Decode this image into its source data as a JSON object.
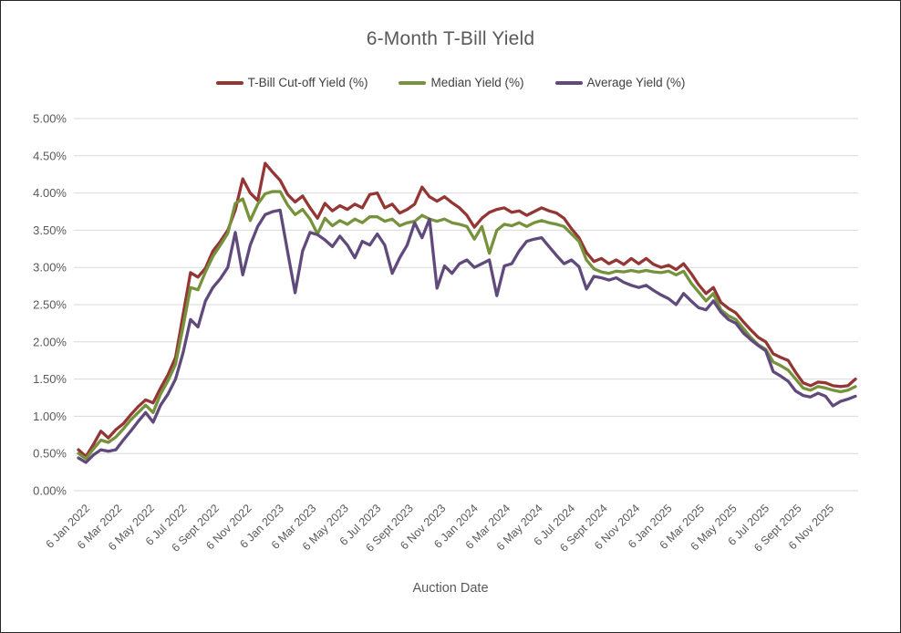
{
  "chart_data": {
    "type": "line",
    "title": "6-Month T-Bill Yield",
    "xlabel": "Auction Date",
    "ylabel": "",
    "ylim": [
      0,
      5
    ],
    "ytick_step": 0.5,
    "ytick_labels": [
      "0.00%",
      "0.50%",
      "1.00%",
      "1.50%",
      "2.00%",
      "2.50%",
      "3.00%",
      "3.50%",
      "4.00%",
      "4.50%",
      "5.00%"
    ],
    "x_tick_labels": [
      "6 Jan 2022",
      "6 Mar 2022",
      "6 May 2022",
      "6 Jul 2022",
      "6 Sept 2022",
      "6 Nov 2022",
      "6 Jan 2023",
      "6 Mar 2023",
      "6 May 2023",
      "6 Jul 2023",
      "6 Sept 2023",
      "6 Nov 2023",
      "6 Jan 2024",
      "6 Mar 2024",
      "6 May 2024",
      "6 Jul 2024",
      "6 Sept 2024",
      "6 Nov 2024",
      "6 Jan 2025",
      "6 Mar 2025",
      "6 May 2025",
      "6 Jul 2025",
      "6 Sept 2025",
      "6 Nov 2025"
    ],
    "grid": true,
    "legend_position": "top",
    "x_unit": "fortnightly auctions",
    "series": [
      {
        "name": "T-Bill Cut-off Yield (%)",
        "color": "#943634",
        "values": [
          0.55,
          0.46,
          0.62,
          0.8,
          0.71,
          0.82,
          0.9,
          1.02,
          1.13,
          1.22,
          1.18,
          1.38,
          1.56,
          1.79,
          2.36,
          2.93,
          2.87,
          2.99,
          3.22,
          3.35,
          3.5,
          3.77,
          4.19,
          4.0,
          3.9,
          4.4,
          4.28,
          4.17,
          3.98,
          3.88,
          3.96,
          3.8,
          3.66,
          3.86,
          3.76,
          3.83,
          3.78,
          3.85,
          3.8,
          3.98,
          4.0,
          3.8,
          3.85,
          3.73,
          3.78,
          3.85,
          4.08,
          3.95,
          3.89,
          3.95,
          3.87,
          3.8,
          3.7,
          3.54,
          3.66,
          3.74,
          3.78,
          3.8,
          3.74,
          3.76,
          3.7,
          3.75,
          3.8,
          3.76,
          3.73,
          3.66,
          3.52,
          3.4,
          3.2,
          3.08,
          3.12,
          3.05,
          3.1,
          3.04,
          3.12,
          3.05,
          3.12,
          3.04,
          3.0,
          3.03,
          2.97,
          3.05,
          2.92,
          2.77,
          2.65,
          2.73,
          2.53,
          2.45,
          2.39,
          2.27,
          2.16,
          2.06,
          2.0,
          1.84,
          1.79,
          1.75,
          1.59,
          1.45,
          1.41,
          1.46,
          1.45,
          1.41,
          1.4,
          1.41,
          1.5
        ]
      },
      {
        "name": "Median Yield (%)",
        "color": "#76923C",
        "values": [
          0.5,
          0.43,
          0.56,
          0.68,
          0.65,
          0.72,
          0.83,
          0.95,
          1.05,
          1.15,
          1.05,
          1.3,
          1.48,
          1.7,
          2.2,
          2.73,
          2.7,
          2.94,
          3.15,
          3.3,
          3.46,
          3.86,
          3.92,
          3.63,
          3.85,
          3.99,
          4.02,
          4.02,
          3.84,
          3.71,
          3.78,
          3.65,
          3.45,
          3.66,
          3.56,
          3.63,
          3.58,
          3.65,
          3.6,
          3.68,
          3.68,
          3.62,
          3.65,
          3.56,
          3.6,
          3.62,
          3.7,
          3.65,
          3.62,
          3.65,
          3.6,
          3.58,
          3.55,
          3.38,
          3.55,
          3.19,
          3.5,
          3.58,
          3.56,
          3.6,
          3.55,
          3.6,
          3.63,
          3.6,
          3.58,
          3.55,
          3.45,
          3.35,
          3.1,
          2.98,
          2.94,
          2.92,
          2.95,
          2.94,
          2.96,
          2.94,
          2.96,
          2.94,
          2.93,
          2.95,
          2.9,
          2.95,
          2.79,
          2.67,
          2.55,
          2.65,
          2.43,
          2.35,
          2.3,
          2.18,
          2.06,
          1.96,
          1.9,
          1.73,
          1.68,
          1.62,
          1.5,
          1.38,
          1.35,
          1.4,
          1.38,
          1.35,
          1.33,
          1.35,
          1.4
        ]
      },
      {
        "name": "Average Yield (%)",
        "color": "#604A7B",
        "values": [
          0.44,
          0.38,
          0.48,
          0.55,
          0.53,
          0.55,
          0.68,
          0.8,
          0.93,
          1.05,
          0.92,
          1.15,
          1.3,
          1.5,
          1.85,
          2.3,
          2.2,
          2.55,
          2.73,
          2.85,
          3.0,
          3.47,
          2.9,
          3.3,
          3.55,
          3.71,
          3.75,
          3.77,
          3.21,
          2.66,
          3.22,
          3.47,
          3.44,
          3.37,
          3.28,
          3.42,
          3.3,
          3.13,
          3.35,
          3.3,
          3.45,
          3.3,
          2.92,
          3.13,
          3.3,
          3.6,
          3.4,
          3.65,
          2.72,
          3.02,
          2.92,
          3.05,
          3.1,
          3.0,
          3.05,
          3.1,
          2.62,
          3.02,
          3.05,
          3.22,
          3.35,
          3.38,
          3.4,
          3.28,
          3.16,
          3.05,
          3.1,
          3.01,
          2.71,
          2.88,
          2.86,
          2.83,
          2.86,
          2.8,
          2.76,
          2.73,
          2.76,
          2.69,
          2.63,
          2.58,
          2.5,
          2.65,
          2.55,
          2.46,
          2.43,
          2.55,
          2.4,
          2.3,
          2.25,
          2.12,
          2.03,
          1.95,
          1.88,
          1.6,
          1.54,
          1.47,
          1.34,
          1.28,
          1.26,
          1.31,
          1.27,
          1.14,
          1.2,
          1.23,
          1.27
        ]
      }
    ]
  },
  "colors": {
    "title_text": "#595959",
    "axis_text": "#595959",
    "legend_text": "#3f3f3f",
    "gridline": "#d9d9d9",
    "background": "#ffffff",
    "frame_border": "#262626"
  }
}
